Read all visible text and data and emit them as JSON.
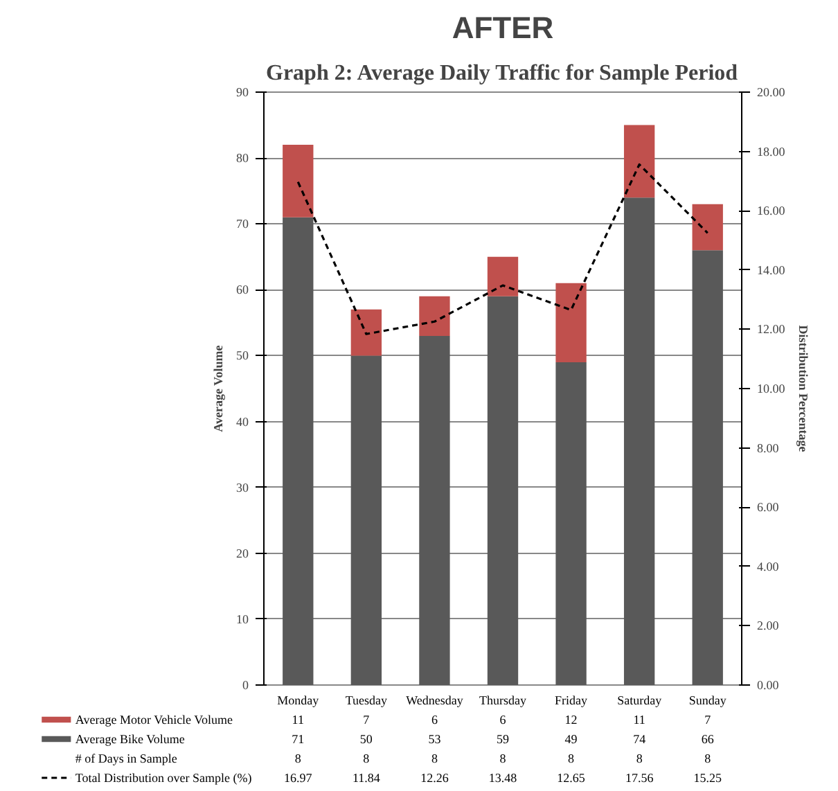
{
  "chart_data": {
    "type": "bar",
    "title": "Graph 2: Average Daily Traffic for Sample Period",
    "annotations": [
      "AFTER",
      "# of Days in Sample",
      "8",
      "8",
      "8",
      "8",
      "8",
      "8",
      "8"
    ],
    "ylabel": "Average Volume",
    "y2label": "Distribution Percentage",
    "categories": [
      "Monday",
      "Tuesday",
      "Wednesday",
      "Thursday",
      "Friday",
      "Saturday",
      "Sunday"
    ],
    "stacked": true,
    "series": [
      {
        "name": "Average Bike Volume",
        "color": "#595959",
        "values": [
          71,
          50,
          53,
          59,
          49,
          74,
          66
        ]
      },
      {
        "name": "Average Motor Vehicle Volume",
        "color": "#c0504d",
        "values": [
          11,
          7,
          6,
          6,
          12,
          11,
          7
        ]
      },
      {
        "name": "Total Distribution over Sample (%)",
        "type": "line",
        "axis": "y2",
        "color": "#000000",
        "line_style": "dashed",
        "values": [
          16.97,
          11.84,
          12.26,
          13.48,
          12.65,
          17.56,
          15.25
        ]
      }
    ],
    "ylim": [
      0,
      90
    ],
    "yticks": [
      0,
      10,
      20,
      30,
      40,
      50,
      60,
      70,
      80,
      90
    ],
    "y2lim": [
      0,
      20
    ],
    "y2ticks": [
      {
        "value": 0,
        "label": "0.00"
      },
      {
        "value": 2,
        "label": "2.00"
      },
      {
        "value": 4,
        "label": "4.00"
      },
      {
        "value": 6,
        "label": "6.00"
      },
      {
        "value": 8,
        "label": "8.00"
      },
      {
        "value": 10,
        "label": "10.00"
      },
      {
        "value": 12,
        "label": "12.00"
      },
      {
        "value": 14,
        "label": "14.00"
      },
      {
        "value": 16,
        "label": "16.00"
      },
      {
        "value": 18,
        "label": "18.00"
      },
      {
        "value": 20,
        "label": "20.00"
      }
    ],
    "grid": "y",
    "legend": "bottom",
    "data_labels": true,
    "marker": "none"
  }
}
